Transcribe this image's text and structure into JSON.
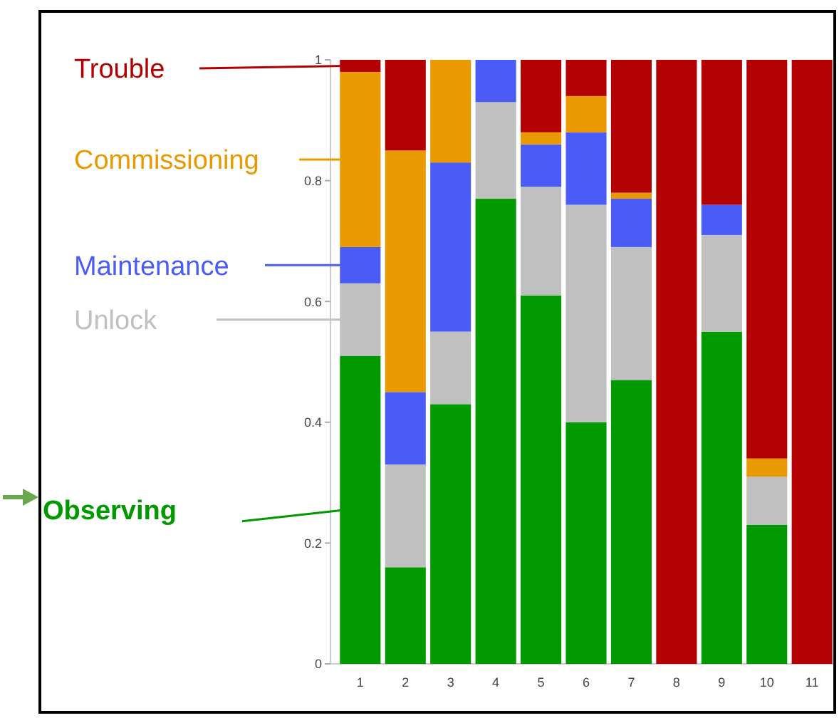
{
  "chart_data": {
    "type": "bar",
    "stacked": true,
    "categories": [
      "1",
      "2",
      "3",
      "4",
      "5",
      "6",
      "7",
      "8",
      "9",
      "10",
      "11"
    ],
    "series": [
      {
        "name": "Observing",
        "color": "#009900",
        "values": [
          0.51,
          0.16,
          0.43,
          0.77,
          0.61,
          0.4,
          0.47,
          0,
          0.55,
          0.23,
          0
        ]
      },
      {
        "name": "Unlock",
        "color": "#c0c0c0",
        "values": [
          0.12,
          0.17,
          0.12,
          0.16,
          0.18,
          0.36,
          0.22,
          0,
          0.16,
          0.08,
          0
        ]
      },
      {
        "name": "Maintenance",
        "color": "#4a5cf5",
        "values": [
          0.06,
          0.12,
          0.28,
          0.07,
          0.07,
          0.12,
          0.08,
          0,
          0.05,
          0,
          0
        ]
      },
      {
        "name": "Commissioning",
        "color": "#e89a00",
        "values": [
          0.29,
          0.4,
          0.17,
          0,
          0.02,
          0.06,
          0.01,
          0,
          0,
          0.03,
          0
        ]
      },
      {
        "name": "Trouble",
        "color": "#b30000",
        "values": [
          0.02,
          0.15,
          0,
          0,
          0.12,
          0.06,
          0.22,
          1,
          0.24,
          0.66,
          1
        ]
      }
    ],
    "ylim": [
      0,
      1
    ],
    "yticks": [
      0,
      0.2,
      0.4,
      0.6,
      0.8,
      1
    ],
    "legend": "left"
  }
}
